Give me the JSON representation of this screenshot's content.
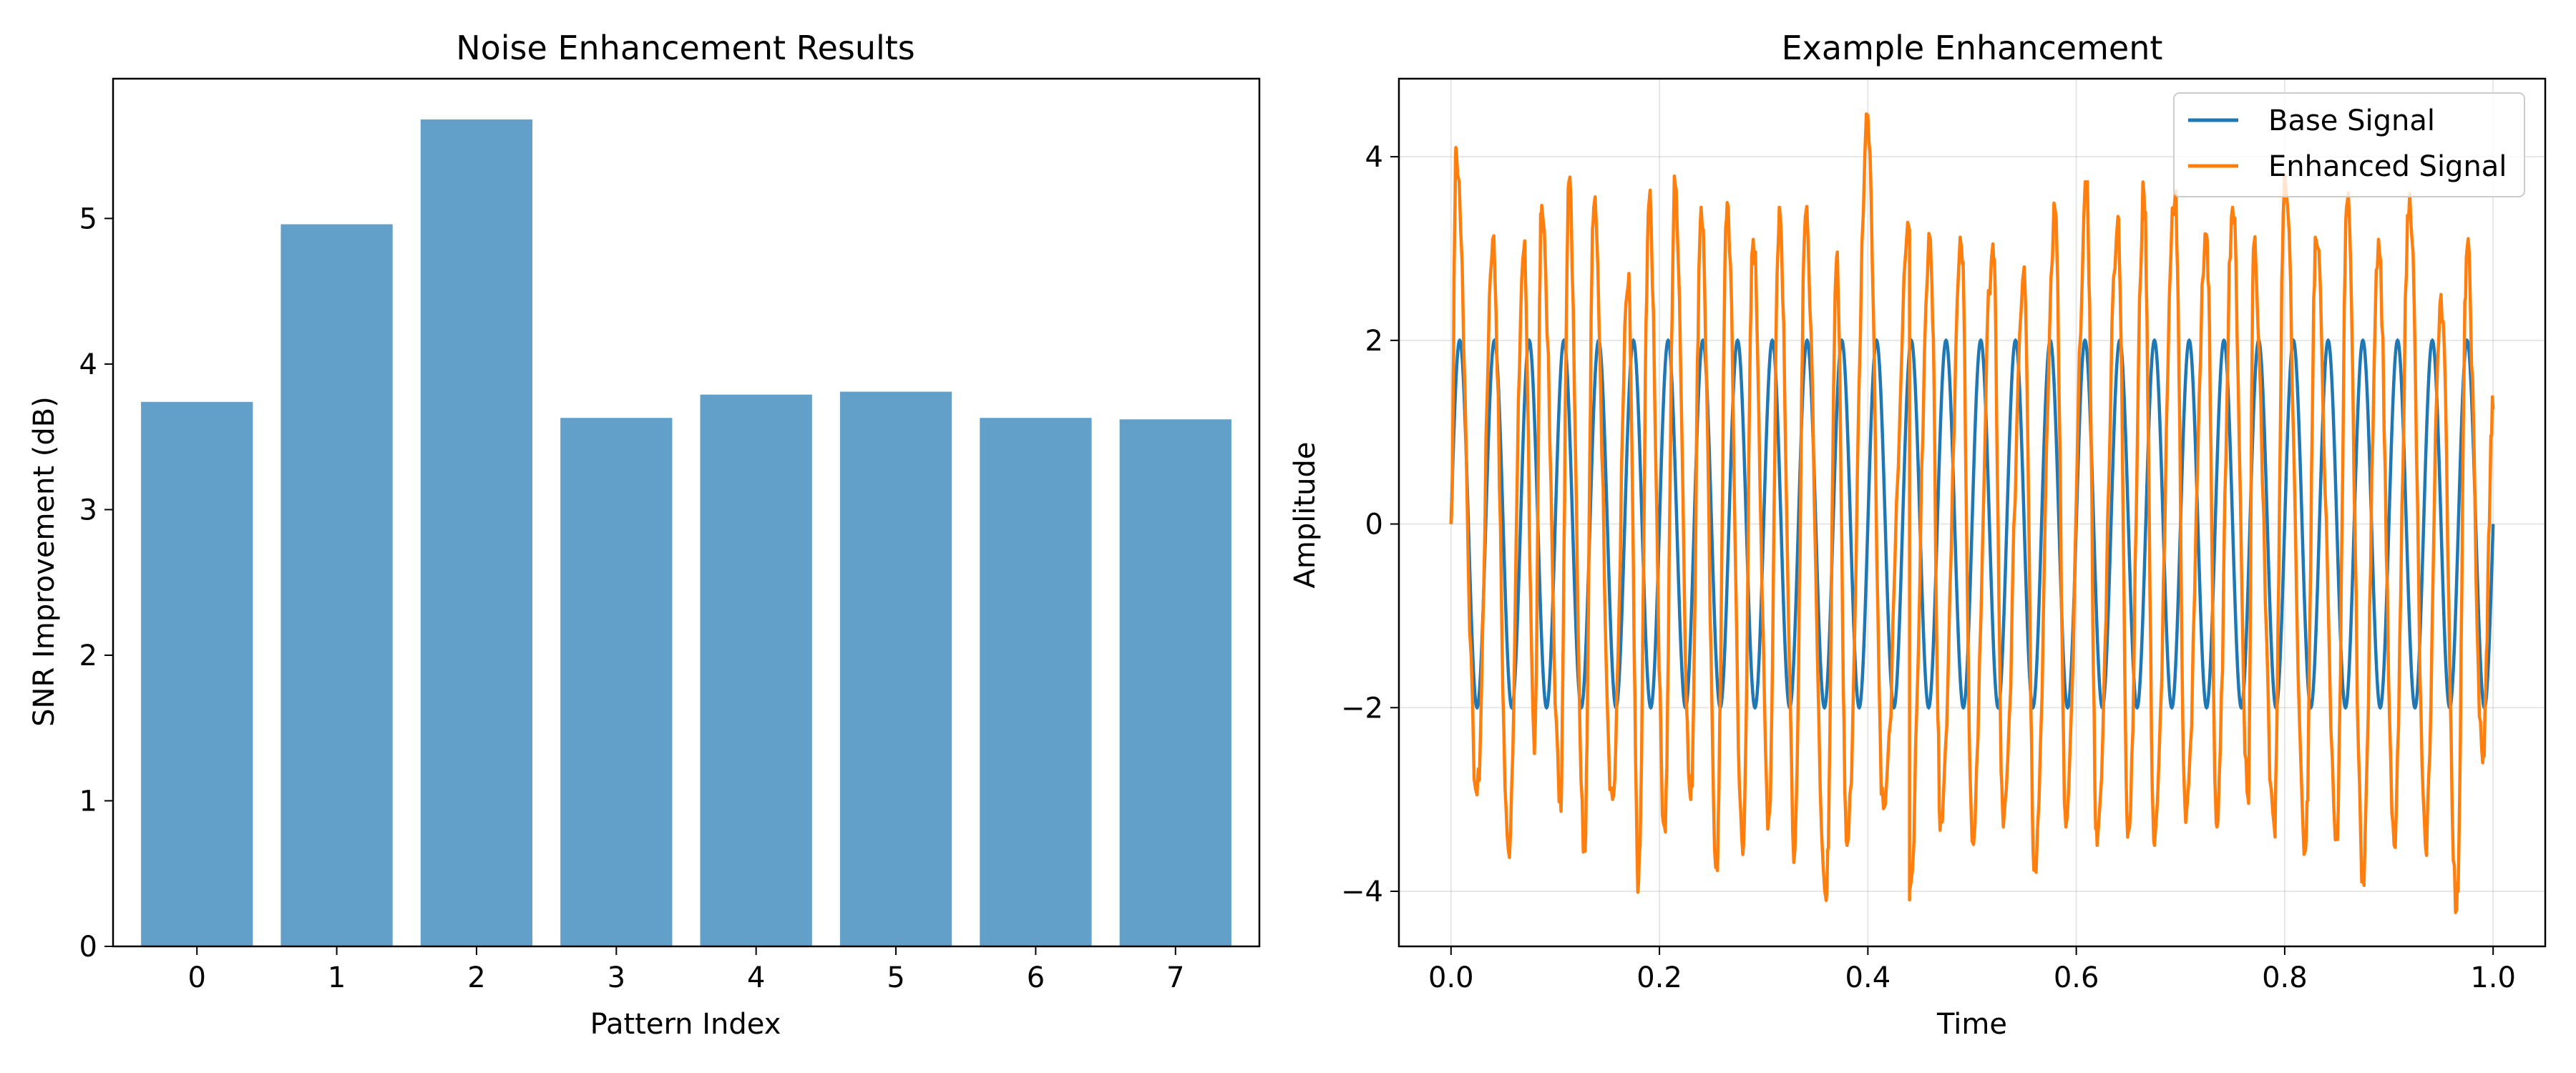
{
  "chart_data": [
    {
      "type": "bar",
      "title": "Noise Enhancement Results",
      "xlabel": "Pattern Index",
      "ylabel": "SNR Improvement (dB)",
      "categories": [
        "0",
        "1",
        "2",
        "3",
        "4",
        "5",
        "6",
        "7"
      ],
      "values": [
        3.74,
        4.96,
        5.68,
        3.63,
        3.79,
        3.81,
        3.63,
        3.62
      ],
      "ylim": [
        0,
        5.96
      ],
      "yticks": [
        0,
        1,
        2,
        3,
        4,
        5
      ],
      "bar_color": "#1f77b4",
      "bar_opacity": 0.7,
      "grid": false
    },
    {
      "type": "line",
      "title": "Example Enhancement",
      "xlabel": "Time",
      "ylabel": "Amplitude",
      "xlim": [
        -0.05,
        1.05
      ],
      "ylim": [
        -4.6,
        4.85
      ],
      "xticks": [
        0.0,
        0.2,
        0.4,
        0.6,
        0.8,
        1.0
      ],
      "xtick_labels": [
        "0.0",
        "0.2",
        "0.4",
        "0.6",
        "0.8",
        "1.0"
      ],
      "yticks": [
        -4,
        -2,
        0,
        2,
        4
      ],
      "ytick_labels": [
        "−4",
        "−2",
        "0",
        "2",
        "4"
      ],
      "grid": true,
      "legend_position": "top-right",
      "series": [
        {
          "name": "Base Signal",
          "color": "#1f77b4",
          "function": "2*sin(2*pi*f*t)",
          "frequency_hz": 30,
          "t_range": [
            0,
            1
          ],
          "amplitude": 2
        },
        {
          "name": "Enhanced Signal",
          "color": "#ff7f0e",
          "t_range": [
            0,
            1
          ],
          "peaks": [
            [
              0.005,
              4.08
            ],
            [
              0.04,
              3.1
            ],
            [
              0.07,
              3.0
            ],
            [
              0.087,
              3.47
            ],
            [
              0.113,
              3.72
            ],
            [
              0.137,
              3.45
            ],
            [
              0.17,
              2.6
            ],
            [
              0.19,
              3.5
            ],
            [
              0.215,
              3.7
            ],
            [
              0.24,
              3.45
            ],
            [
              0.265,
              3.5
            ],
            [
              0.29,
              3.1
            ],
            [
              0.315,
              3.45
            ],
            [
              0.34,
              3.35
            ],
            [
              0.37,
              2.9
            ],
            [
              0.4,
              4.45
            ],
            [
              0.44,
              3.2
            ],
            [
              0.46,
              3.1
            ],
            [
              0.49,
              3.0
            ],
            [
              0.52,
              3.05
            ],
            [
              0.55,
              2.8
            ],
            [
              0.58,
              3.4
            ],
            [
              0.61,
              3.6
            ],
            [
              0.64,
              3.35
            ],
            [
              0.665,
              3.6
            ],
            [
              0.695,
              3.6
            ],
            [
              0.725,
              3.15
            ],
            [
              0.75,
              3.45
            ],
            [
              0.77,
              3.0
            ],
            [
              0.8,
              3.8
            ],
            [
              0.83,
              3.1
            ],
            [
              0.86,
              3.5
            ],
            [
              0.89,
              3.1
            ],
            [
              0.92,
              3.6
            ],
            [
              0.95,
              2.5
            ],
            [
              0.975,
              3.0
            ]
          ],
          "troughs": [
            [
              0.025,
              -2.95
            ],
            [
              0.055,
              -3.55
            ],
            [
              0.08,
              -2.5
            ],
            [
              0.105,
              -3.0
            ],
            [
              0.128,
              -3.5
            ],
            [
              0.155,
              -3.0
            ],
            [
              0.18,
              -3.9
            ],
            [
              0.205,
              -3.3
            ],
            [
              0.23,
              -3.0
            ],
            [
              0.255,
              -3.7
            ],
            [
              0.28,
              -3.6
            ],
            [
              0.305,
              -3.2
            ],
            [
              0.33,
              -3.55
            ],
            [
              0.36,
              -4.1
            ],
            [
              0.38,
              -3.5
            ],
            [
              0.415,
              -3.1
            ],
            [
              0.44,
              -4.0
            ],
            [
              0.47,
              -3.2
            ],
            [
              0.5,
              -3.45
            ],
            [
              0.53,
              -3.3
            ],
            [
              0.56,
              -3.7
            ],
            [
              0.59,
              -3.3
            ],
            [
              0.62,
              -3.5
            ],
            [
              0.65,
              -3.35
            ],
            [
              0.675,
              -3.5
            ],
            [
              0.705,
              -3.25
            ],
            [
              0.735,
              -3.3
            ],
            [
              0.765,
              -3.0
            ],
            [
              0.79,
              -3.3
            ],
            [
              0.82,
              -3.55
            ],
            [
              0.85,
              -3.4
            ],
            [
              0.875,
              -3.8
            ],
            [
              0.905,
              -3.5
            ],
            [
              0.935,
              -3.5
            ],
            [
              0.965,
              -4.2
            ],
            [
              0.99,
              -2.6
            ]
          ]
        }
      ]
    }
  ]
}
